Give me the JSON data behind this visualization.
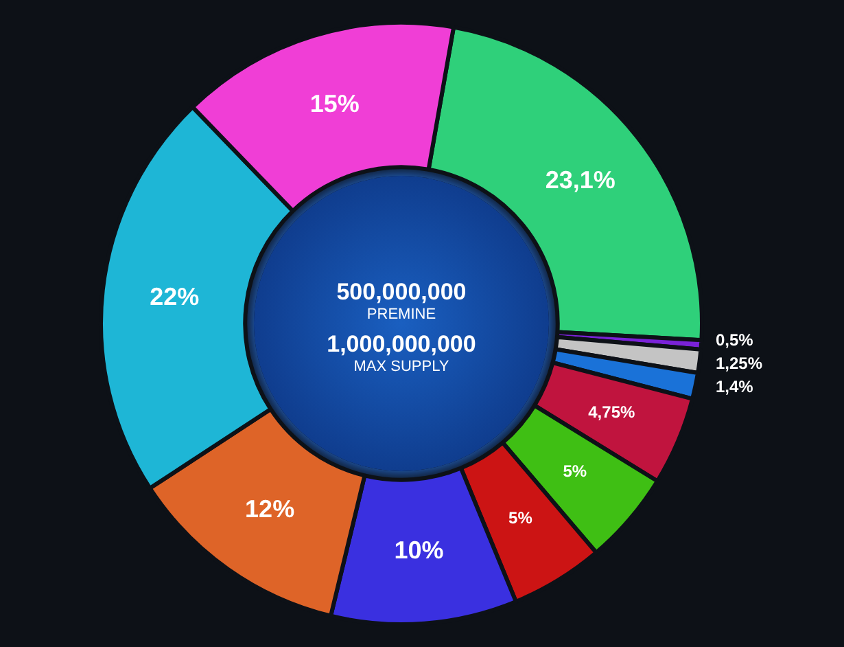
{
  "chart_data": {
    "type": "donut",
    "categories": [
      null,
      null,
      null,
      null,
      null,
      null,
      null,
      null,
      null,
      null,
      null
    ],
    "values": [
      23.1,
      0.5,
      1.25,
      1.4,
      4.75,
      5,
      5,
      10,
      12,
      22,
      15
    ],
    "value_labels": [
      "23,1%",
      "0,5%",
      "1,25%",
      "1,4%",
      "4,75%",
      "5%",
      "5%",
      "10%",
      "12%",
      "22%",
      "15%"
    ],
    "colors": [
      "#2fd07a",
      "#7a22d8",
      "#c4c4c4",
      "#1a72d8",
      "#c0143e",
      "#3fbf14",
      "#cc1414",
      "#3a30e0",
      "#de6428",
      "#1eb6d6",
      "#f03ed6"
    ],
    "annotations": [
      "500,000,000",
      "PREMINE",
      "1,000,000,000",
      "MAX SUPPLY"
    ],
    "legend": false
  }
}
